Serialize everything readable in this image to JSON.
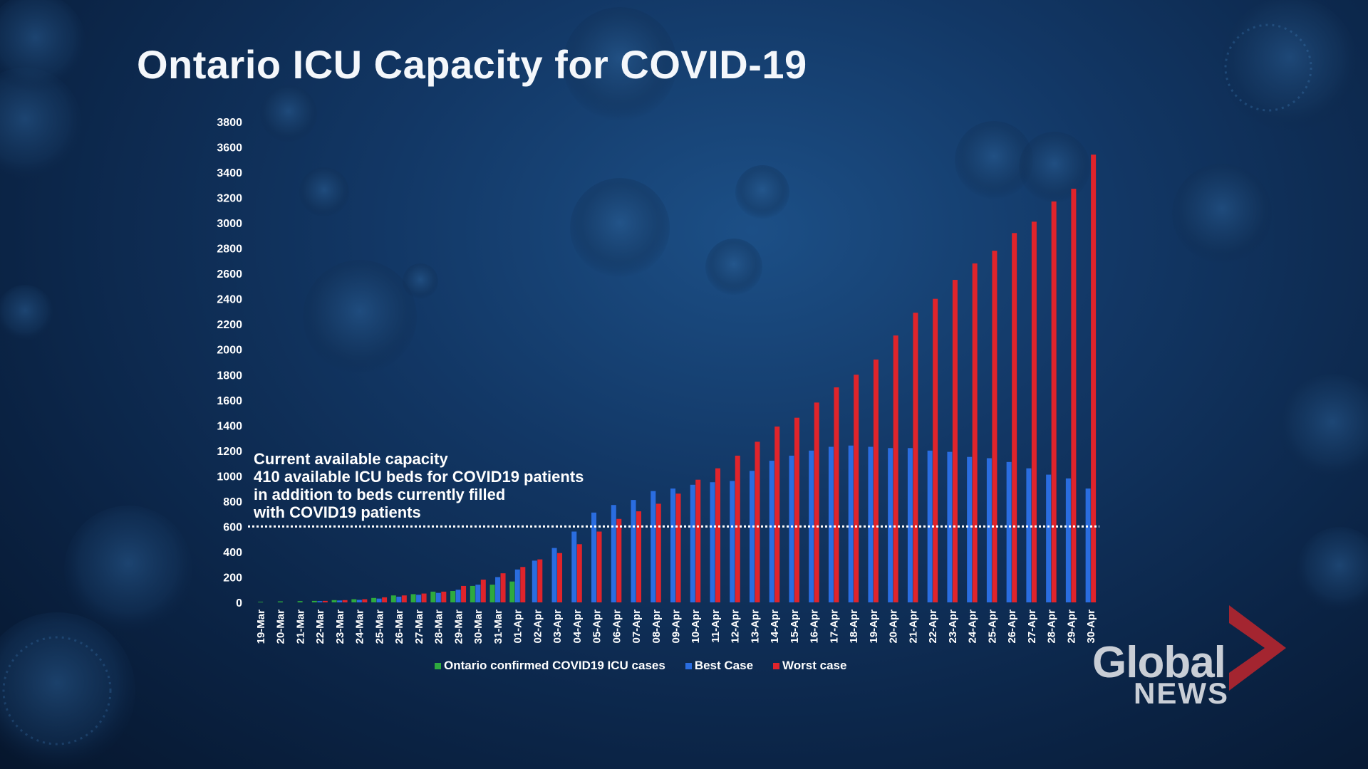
{
  "title": "Ontario ICU Capacity for COVID-19",
  "annotation": "Current available capacity\n410 available ICU beds for COVID19 patients\nin addition to beds currently filled\nwith COVID19 patients",
  "logo": {
    "line1": "Global",
    "line2": "NEWS"
  },
  "colors": {
    "confirmed": "#2eaa3e",
    "best": "#2a6de0",
    "worst": "#e0242b",
    "capacity_line": "#ffffff"
  },
  "chart_data": {
    "type": "bar",
    "title": "Ontario ICU Capacity for COVID-19",
    "xlabel": "",
    "ylabel": "",
    "ylim": [
      0,
      3800
    ],
    "yticks": [
      0,
      200,
      400,
      600,
      800,
      1000,
      1200,
      1400,
      1600,
      1800,
      2000,
      2200,
      2400,
      2600,
      2800,
      3000,
      3200,
      3400,
      3600,
      3800
    ],
    "categories": [
      "19-Mar",
      "20-Mar",
      "21-Mar",
      "22-Mar",
      "23-Mar",
      "24-Mar",
      "25-Mar",
      "26-Mar",
      "27-Mar",
      "28-Mar",
      "29-Mar",
      "30-Mar",
      "31-Mar",
      "01-Apr",
      "02-Apr",
      "03-Apr",
      "04-Apr",
      "05-Apr",
      "06-Apr",
      "07-Apr",
      "08-Apr",
      "09-Apr",
      "10-Apr",
      "11-Apr",
      "12-Apr",
      "13-Apr",
      "14-Apr",
      "15-Apr",
      "16-Apr",
      "17-Apr",
      "18-Apr",
      "19-Apr",
      "20-Apr",
      "21-Apr",
      "22-Apr",
      "23-Apr",
      "24-Apr",
      "25-Apr",
      "26-Apr",
      "27-Apr",
      "28-Apr",
      "29-Apr",
      "30-Apr"
    ],
    "series": [
      {
        "name": "Ontario confirmed COVID19 ICU cases",
        "color": "#2eaa3e",
        "values": [
          5,
          8,
          10,
          12,
          18,
          25,
          35,
          55,
          65,
          85,
          90,
          130,
          140,
          165,
          null,
          null,
          null,
          null,
          null,
          null,
          null,
          null,
          null,
          null,
          null,
          null,
          null,
          null,
          null,
          null,
          null,
          null,
          null,
          null,
          null,
          null,
          null,
          null,
          null,
          null,
          null,
          null,
          null
        ]
      },
      {
        "name": "Best Case",
        "color": "#2a6de0",
        "values": [
          null,
          null,
          null,
          10,
          15,
          20,
          30,
          45,
          60,
          75,
          100,
          140,
          200,
          260,
          330,
          430,
          560,
          710,
          770,
          810,
          880,
          900,
          930,
          950,
          960,
          1040,
          1120,
          1160,
          1200,
          1230,
          1240,
          1230,
          1220,
          1220,
          1200,
          1190,
          1150,
          1140,
          1110,
          1060,
          1010,
          980,
          900
        ]
      },
      {
        "name": "Worst case",
        "color": "#e0242b",
        "values": [
          null,
          null,
          null,
          12,
          18,
          25,
          40,
          55,
          70,
          85,
          130,
          180,
          230,
          280,
          340,
          390,
          460,
          560,
          660,
          720,
          780,
          860,
          970,
          1060,
          1160,
          1270,
          1390,
          1460,
          1580,
          1700,
          1800,
          1920,
          2110,
          2290,
          2400,
          2550,
          2680,
          2780,
          2920,
          3010,
          3170,
          3270,
          3540
        ]
      }
    ],
    "reference_line": {
      "value": 600,
      "style": "dotted"
    },
    "legend_position": "bottom",
    "grid": false
  }
}
